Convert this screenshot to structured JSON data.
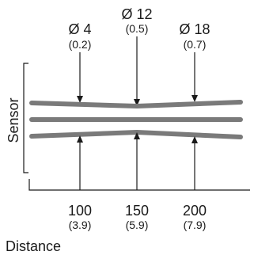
{
  "top_labels": [
    {
      "diameter": "Ø 4",
      "inches": "(0.2)"
    },
    {
      "diameter": "Ø 12",
      "inches": "(0.5)"
    },
    {
      "diameter": "Ø 18",
      "inches": "(0.7)"
    }
  ],
  "bottom_labels": [
    {
      "distance": "100",
      "inches": "(3.9)"
    },
    {
      "distance": "150",
      "inches": "(5.9)"
    },
    {
      "distance": "200",
      "inches": "(7.9)"
    }
  ],
  "axis": {
    "y_label": "Sensor",
    "x_label": "Distance"
  },
  "colors": {
    "beam": "#7a7a7a",
    "ink": "#1a1a1a"
  }
}
